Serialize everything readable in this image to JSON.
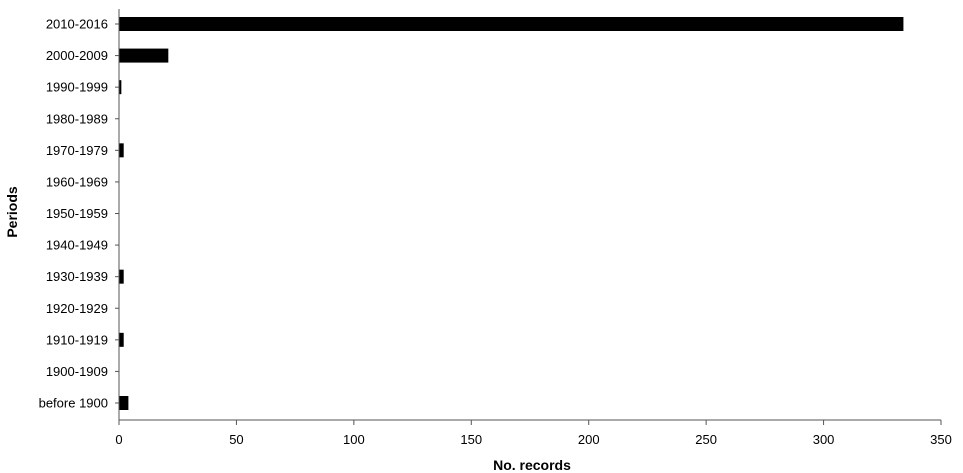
{
  "chart_data": {
    "type": "bar",
    "orientation": "horizontal",
    "title": "",
    "xlabel": "No. records",
    "ylabel": "Periods",
    "xlim": [
      0,
      350
    ],
    "x_ticks": [
      0,
      50,
      100,
      150,
      200,
      250,
      300,
      350
    ],
    "grid": false,
    "legend": "none",
    "bar_color": "#000000",
    "categories": [
      "2010-2016",
      "2000-2009",
      "1990-1999",
      "1980-1989",
      "1970-1979",
      "1960-1969",
      "1950-1959",
      "1940-1949",
      "1930-1939",
      "1920-1929",
      "1910-1919",
      "1900-1909",
      "before 1900"
    ],
    "values": [
      334,
      21,
      1,
      0,
      2,
      0,
      0,
      0,
      2,
      0,
      2,
      0,
      4
    ]
  }
}
